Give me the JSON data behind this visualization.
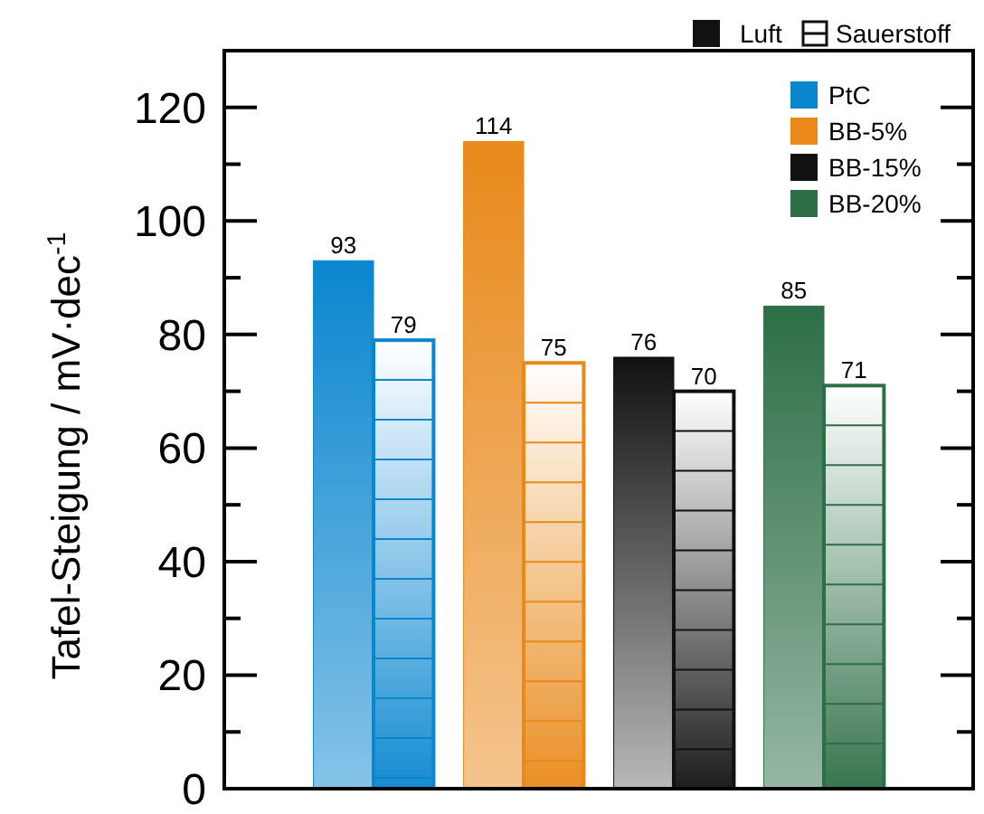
{
  "chart_data": {
    "type": "bar",
    "ylabel": "Tafel-Steigung / mV·dec$^{-1}$",
    "categories": [
      null,
      null,
      null,
      null
    ],
    "annotations": [
      "PtC",
      "BB-5%",
      "BB-15%",
      "BB-20%"
    ],
    "series": [
      {
        "name": "Luft",
        "color": "#111111",
        "colors": [
          "#0a86cf",
          "#e8891a",
          "#111111",
          "#2d6e47"
        ],
        "values": [
          93,
          114,
          76,
          85
        ]
      },
      {
        "name": "Sauerstoff",
        "color": "#111111",
        "colors": [
          "#0a86cf",
          "#e8891a",
          "#111111",
          "#2d6e47"
        ],
        "values": [
          79,
          75,
          70,
          71
        ]
      }
    ],
    "ylim": [
      0,
      130
    ],
    "yticks": [
      0,
      {
        "value": 10,
        "label": null
      },
      20,
      {
        "value": 30,
        "label": null
      },
      40,
      {
        "value": 50,
        "label": null
      },
      60,
      {
        "value": 70,
        "label": null
      },
      80,
      {
        "value": 90,
        "label": null
      },
      100,
      {
        "value": 110,
        "label": null
      },
      120
    ],
    "data_labels": true,
    "tick_labels": "y",
    "grid": false,
    "legend": "top right"
  }
}
